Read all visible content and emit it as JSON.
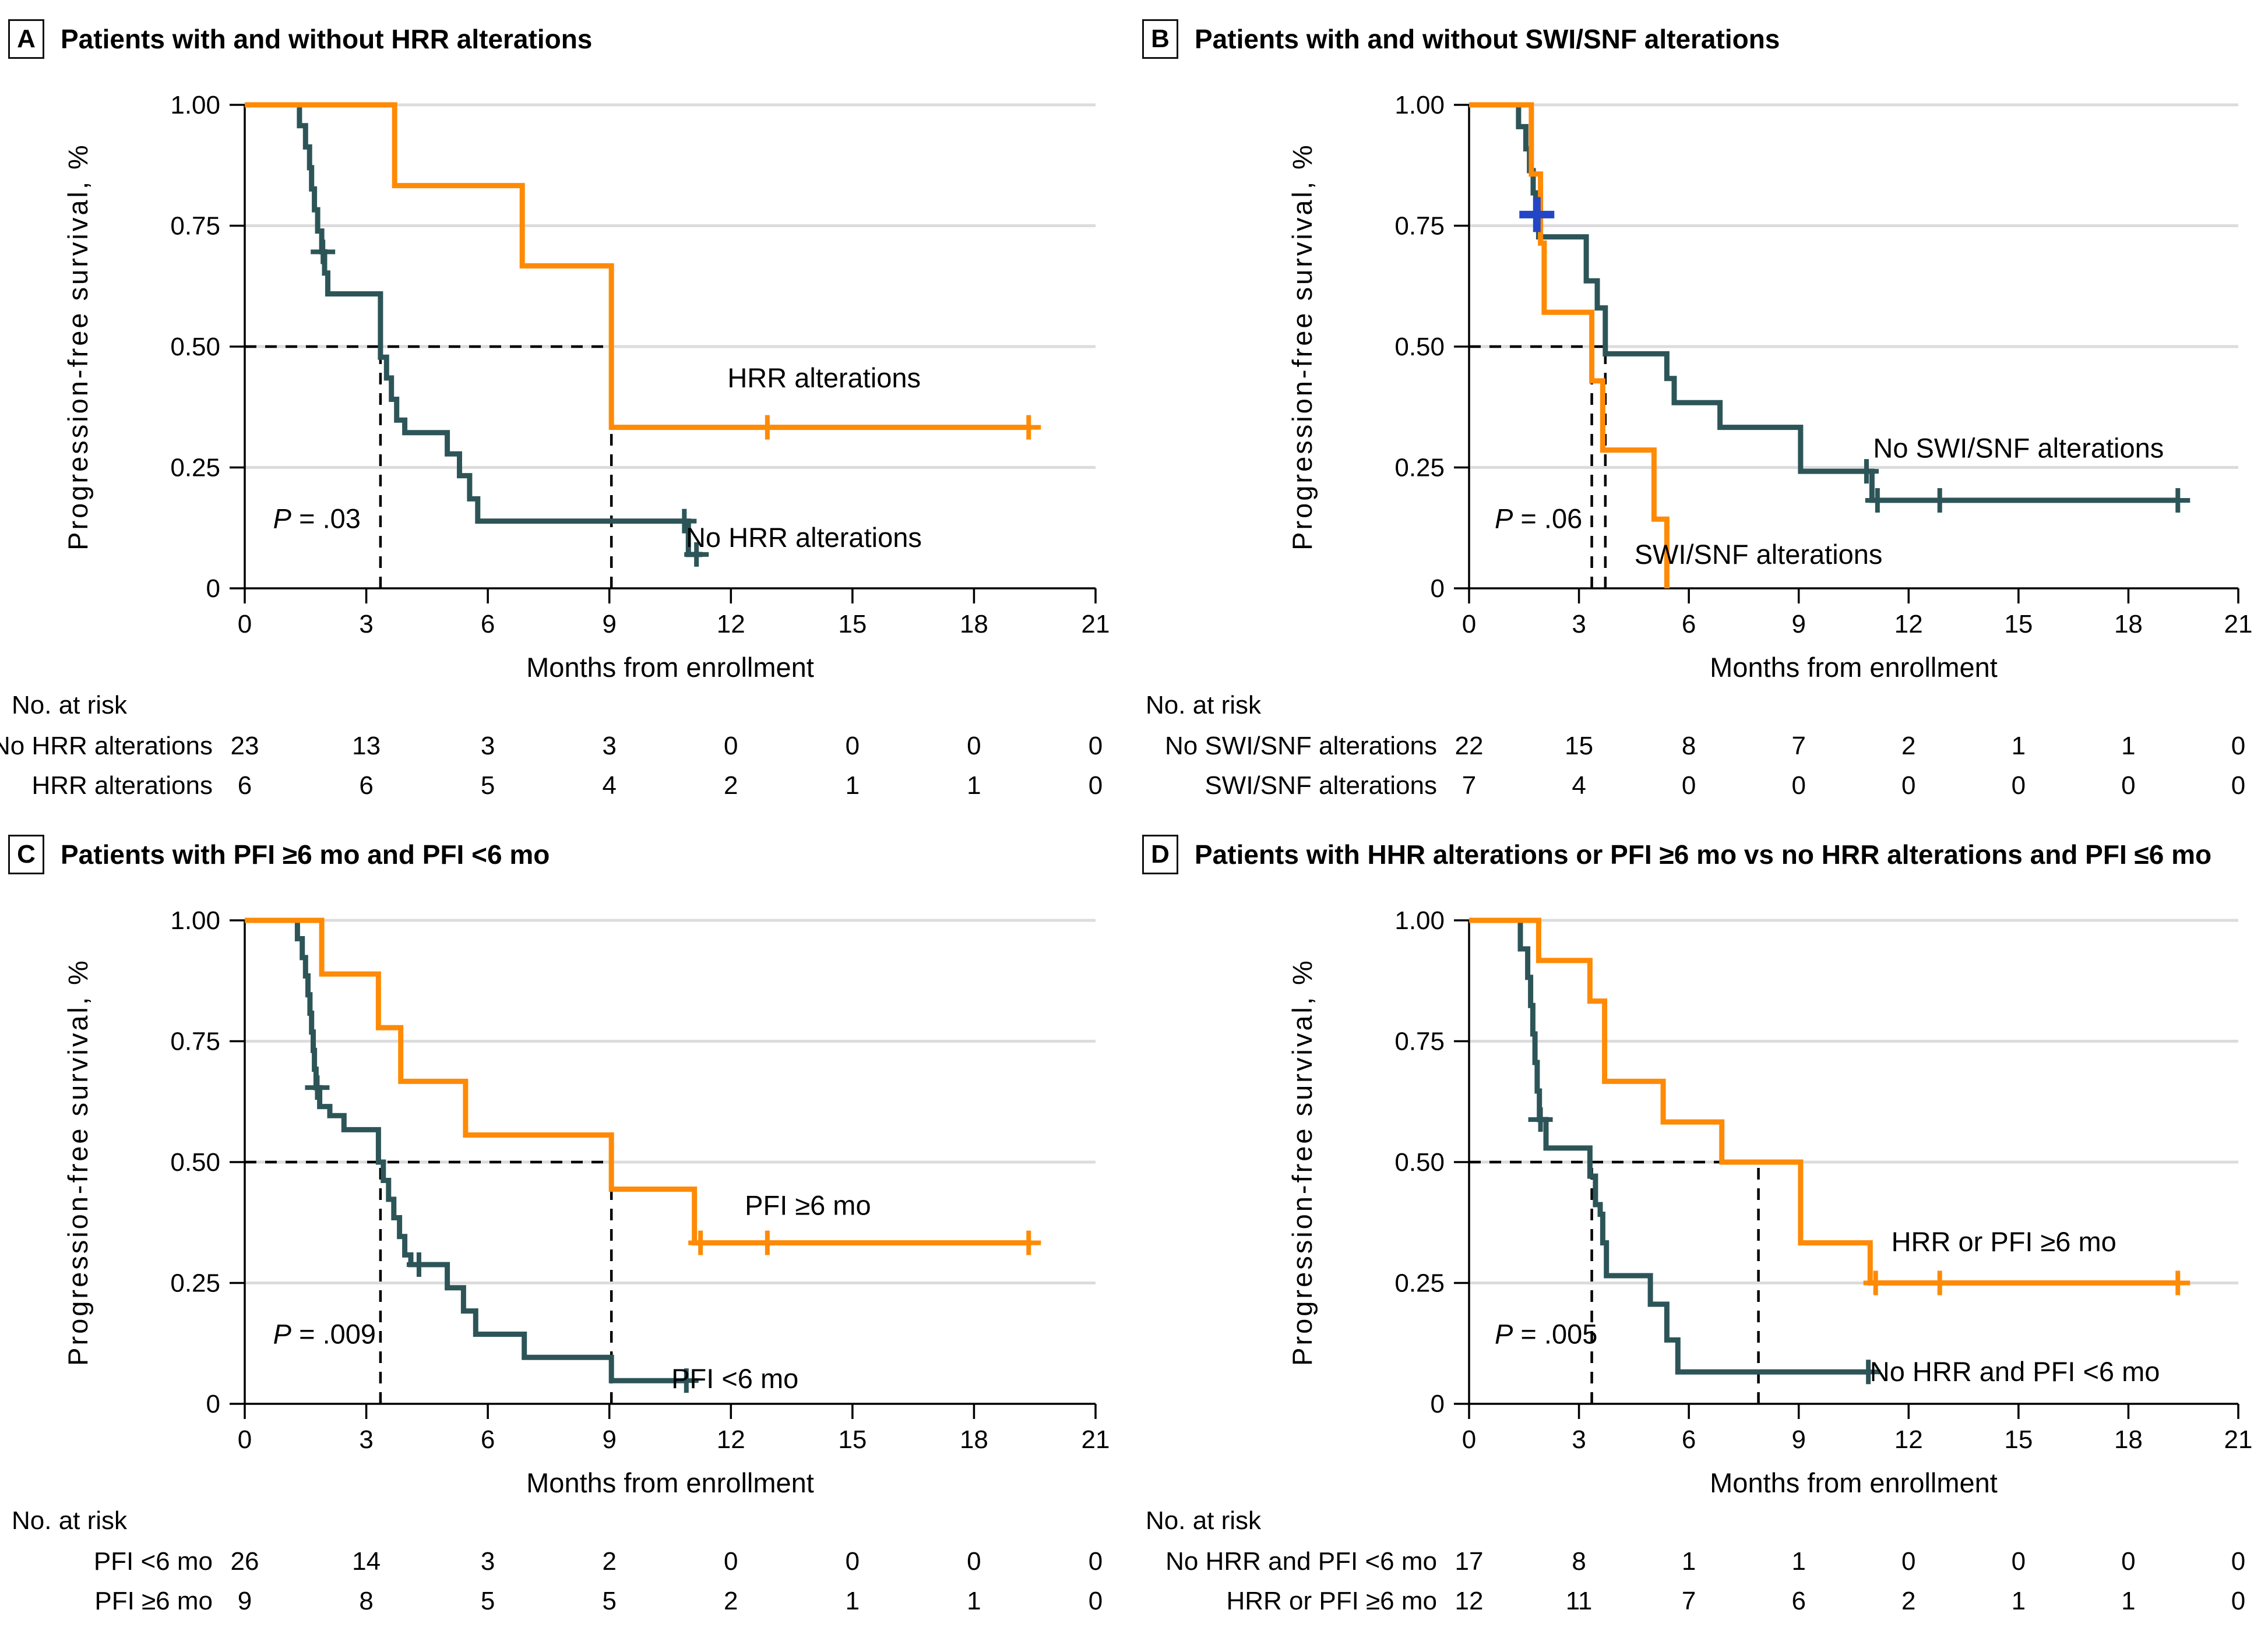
{
  "figure": {
    "background": "#ffffff",
    "colors": {
      "orange": "#FF8A05",
      "teal": "#2D5558",
      "blue_censor": "#2346C7",
      "gridline": "#DCDCDC",
      "axis": "#000000",
      "dashed": "#000000"
    },
    "axes": {
      "xlabel": "Months from enrollment",
      "ylabel": "Progression-free survival, %",
      "x_ticks": [
        0,
        3,
        6,
        9,
        12,
        15,
        18,
        21
      ],
      "y_ticks": [
        "0",
        "0.25",
        "0.50",
        "0.75",
        "1.00"
      ],
      "y_tick_values": [
        0,
        0.25,
        0.5,
        0.75,
        1.0
      ],
      "xlim": [
        0,
        21
      ],
      "ylim": [
        0,
        1
      ],
      "grid": "horizontal-light-gray"
    },
    "risk_header": "No. at risk"
  },
  "chart_data": [
    {
      "panel": "A",
      "type": "line",
      "subtype": "kaplan-meier-step",
      "title": "Patients with and without HRR alterations",
      "p_value": "P = .03",
      "dashed_h": {
        "y": 0.5,
        "x_from": 0,
        "x_to": 9.05
      },
      "dashed_v": [
        {
          "x": 3.35,
          "y_to": 0.5
        },
        {
          "x": 9.05,
          "y_to": 0.5
        }
      ],
      "series": [
        {
          "name": "No HRR alterations",
          "color": "teal",
          "label": "No HRR alterations",
          "label_x": 13.8,
          "label_y": 0.105,
          "steps": [
            [
              0,
              1
            ],
            [
              1.35,
              0.957
            ],
            [
              1.5,
              0.913
            ],
            [
              1.6,
              0.87
            ],
            [
              1.65,
              0.826
            ],
            [
              1.72,
              0.783
            ],
            [
              1.8,
              0.739
            ],
            [
              1.9,
              0.696
            ],
            [
              1.97,
              0.652
            ],
            [
              2.05,
              0.609
            ],
            [
              3.35,
              0.478
            ],
            [
              3.5,
              0.435
            ],
            [
              3.62,
              0.391
            ],
            [
              3.75,
              0.348
            ],
            [
              3.95,
              0.322
            ],
            [
              5.0,
              0.278
            ],
            [
              5.3,
              0.233
            ],
            [
              5.55,
              0.185
            ],
            [
              5.75,
              0.139
            ],
            [
              10.95,
              0.07
            ],
            [
              11.3,
              0.07
            ]
          ],
          "censors": [
            [
              1.93,
              0.696
            ],
            [
              10.85,
              0.139
            ],
            [
              11.15,
              0.07
            ]
          ]
        },
        {
          "name": "HRR alterations",
          "color": "orange",
          "label": "HRR alterations",
          "label_x": 14.3,
          "label_y": 0.435,
          "steps": [
            [
              0,
              1
            ],
            [
              3.7,
              0.833
            ],
            [
              6.85,
              0.667
            ],
            [
              9.05,
              0.333
            ],
            [
              19.35,
              0.333
            ]
          ],
          "censors": [
            [
              12.9,
              0.333
            ],
            [
              19.35,
              0.333
            ]
          ]
        }
      ],
      "risk_rows": [
        {
          "label": "No HRR alterations",
          "values": [
            23,
            13,
            3,
            3,
            0,
            0,
            0,
            0
          ]
        },
        {
          "label": "HRR alterations",
          "values": [
            6,
            6,
            5,
            4,
            2,
            1,
            1,
            0
          ]
        }
      ]
    },
    {
      "panel": "B",
      "type": "line",
      "subtype": "kaplan-meier-step",
      "title": "Patients with and without SWI/SNF alterations",
      "p_value": "P = .06",
      "dashed_h": {
        "y": 0.5,
        "x_from": 0,
        "x_to": 3.72
      },
      "dashed_v": [
        {
          "x": 3.35,
          "y_to": 0.5
        },
        {
          "x": 3.72,
          "y_to": 0.5
        }
      ],
      "special_censor": {
        "x": 1.85,
        "y": 0.773
      },
      "series": [
        {
          "name": "No SWI/SNF alterations",
          "color": "teal",
          "label": "No SWI/SNF alterations",
          "label_x": 15.0,
          "label_y": 0.29,
          "steps": [
            [
              0,
              1
            ],
            [
              1.35,
              0.955
            ],
            [
              1.55,
              0.909
            ],
            [
              1.65,
              0.864
            ],
            [
              1.75,
              0.818
            ],
            [
              1.82,
              0.773
            ],
            [
              1.9,
              0.727
            ],
            [
              3.2,
              0.636
            ],
            [
              3.5,
              0.58
            ],
            [
              3.72,
              0.485
            ],
            [
              5.4,
              0.434
            ],
            [
              5.6,
              0.384
            ],
            [
              6.85,
              0.333
            ],
            [
              9.05,
              0.242
            ],
            [
              11.0,
              0.182
            ],
            [
              19.35,
              0.182
            ]
          ],
          "censors": [
            [
              10.85,
              0.242
            ],
            [
              11.15,
              0.182
            ],
            [
              12.85,
              0.182
            ],
            [
              19.35,
              0.182
            ]
          ]
        },
        {
          "name": "SWI/SNF alterations",
          "color": "orange",
          "label": "SWI/SNF alterations",
          "label_x": 7.9,
          "label_y": 0.07,
          "steps": [
            [
              0,
              1
            ],
            [
              1.7,
              0.857
            ],
            [
              1.95,
              0.714
            ],
            [
              2.05,
              0.571
            ],
            [
              3.35,
              0.429
            ],
            [
              3.65,
              0.286
            ],
            [
              5.05,
              0.143
            ],
            [
              5.4,
              0
            ]
          ],
          "censors": []
        }
      ],
      "risk_rows": [
        {
          "label": "No SWI/SNF alterations",
          "values": [
            22,
            15,
            8,
            7,
            2,
            1,
            1,
            0
          ]
        },
        {
          "label": "SWI/SNF alterations",
          "values": [
            7,
            4,
            0,
            0,
            0,
            0,
            0,
            0
          ]
        }
      ]
    },
    {
      "panel": "C",
      "type": "line",
      "subtype": "kaplan-meier-step",
      "title": "Patients with PFI ≥6 mo and PFI <6 mo",
      "p_value": "P = .009",
      "dashed_h": {
        "y": 0.5,
        "x_from": 0,
        "x_to": 9.05
      },
      "dashed_v": [
        {
          "x": 3.35,
          "y_to": 0.5
        },
        {
          "x": 9.05,
          "y_to": 0.5
        }
      ],
      "series": [
        {
          "name": "PFI <6 mo",
          "color": "teal",
          "label": "PFI <6 mo",
          "label_x": 12.1,
          "label_y": 0.052,
          "steps": [
            [
              0,
              1
            ],
            [
              1.3,
              0.962
            ],
            [
              1.42,
              0.923
            ],
            [
              1.5,
              0.885
            ],
            [
              1.56,
              0.846
            ],
            [
              1.61,
              0.808
            ],
            [
              1.65,
              0.769
            ],
            [
              1.69,
              0.731
            ],
            [
              1.72,
              0.692
            ],
            [
              1.76,
              0.654
            ],
            [
              1.85,
              0.615
            ],
            [
              2.1,
              0.596
            ],
            [
              2.45,
              0.567
            ],
            [
              3.3,
              0.5
            ],
            [
              3.42,
              0.462
            ],
            [
              3.55,
              0.423
            ],
            [
              3.68,
              0.385
            ],
            [
              3.82,
              0.346
            ],
            [
              3.95,
              0.308
            ],
            [
              4.1,
              0.288
            ],
            [
              5.0,
              0.24
            ],
            [
              5.4,
              0.192
            ],
            [
              5.7,
              0.144
            ],
            [
              6.9,
              0.096
            ],
            [
              9.05,
              0.048
            ],
            [
              10.95,
              0.048
            ]
          ],
          "censors": [
            [
              1.79,
              0.654
            ],
            [
              4.3,
              0.288
            ],
            [
              10.9,
              0.048
            ]
          ]
        },
        {
          "name": "PFI ≥6 mo",
          "color": "orange",
          "label": "PFI ≥6 mo",
          "label_x": 13.9,
          "label_y": 0.41,
          "steps": [
            [
              0,
              1
            ],
            [
              1.9,
              0.889
            ],
            [
              3.3,
              0.778
            ],
            [
              3.85,
              0.667
            ],
            [
              5.45,
              0.556
            ],
            [
              9.05,
              0.444
            ],
            [
              11.1,
              0.333
            ],
            [
              19.35,
              0.333
            ]
          ],
          "censors": [
            [
              11.25,
              0.333
            ],
            [
              12.9,
              0.333
            ],
            [
              19.35,
              0.333
            ]
          ]
        }
      ],
      "risk_rows": [
        {
          "label": "PFI <6 mo",
          "values": [
            26,
            14,
            3,
            2,
            0,
            0,
            0,
            0
          ]
        },
        {
          "label": "PFI ≥6 mo",
          "values": [
            9,
            8,
            5,
            5,
            2,
            1,
            1,
            0
          ]
        }
      ]
    },
    {
      "panel": "D",
      "type": "line",
      "subtype": "kaplan-meier-step",
      "title": "Patients with HHR alterations or PFI ≥6 mo vs no HRR alterations and PFI ≤6 mo",
      "p_value": "P = .005",
      "dashed_h": {
        "y": 0.5,
        "x_from": 0,
        "x_to": 7.9
      },
      "dashed_v": [
        {
          "x": 3.35,
          "y_to": 0.5
        },
        {
          "x": 7.9,
          "y_to": 0.5
        }
      ],
      "series": [
        {
          "name": "No HRR and PFI <6 mo",
          "color": "teal",
          "label": "No HRR and PFI <6 mo",
          "label_x": 14.9,
          "label_y": 0.066,
          "steps": [
            [
              0,
              1
            ],
            [
              1.4,
              0.941
            ],
            [
              1.6,
              0.882
            ],
            [
              1.68,
              0.824
            ],
            [
              1.74,
              0.765
            ],
            [
              1.8,
              0.706
            ],
            [
              1.86,
              0.647
            ],
            [
              1.92,
              0.588
            ],
            [
              2.1,
              0.529
            ],
            [
              3.3,
              0.471
            ],
            [
              3.45,
              0.412
            ],
            [
              3.58,
              0.392
            ],
            [
              3.65,
              0.333
            ],
            [
              3.75,
              0.265
            ],
            [
              4.95,
              0.206
            ],
            [
              5.4,
              0.132
            ],
            [
              5.7,
              0.066
            ],
            [
              10.95,
              0.066
            ]
          ],
          "censors": [
            [
              1.95,
              0.588
            ],
            [
              10.9,
              0.066
            ]
          ]
        },
        {
          "name": "HRR or PFI ≥6 mo",
          "color": "orange",
          "label": "HRR or PFI ≥6 mo",
          "label_x": 14.6,
          "label_y": 0.335,
          "steps": [
            [
              0,
              1
            ],
            [
              1.9,
              0.917
            ],
            [
              3.3,
              0.833
            ],
            [
              3.7,
              0.667
            ],
            [
              5.3,
              0.583
            ],
            [
              6.9,
              0.5
            ],
            [
              9.05,
              0.333
            ],
            [
              10.95,
              0.25
            ],
            [
              19.35,
              0.25
            ]
          ],
          "censors": [
            [
              11.1,
              0.25
            ],
            [
              12.85,
              0.25
            ],
            [
              19.35,
              0.25
            ]
          ]
        }
      ],
      "risk_rows": [
        {
          "label": "No HRR and PFI <6 mo",
          "values": [
            17,
            8,
            1,
            1,
            0,
            0,
            0,
            0
          ]
        },
        {
          "label": "HRR or PFI ≥6 mo",
          "values": [
            12,
            11,
            7,
            6,
            2,
            1,
            1,
            0
          ]
        }
      ]
    }
  ]
}
